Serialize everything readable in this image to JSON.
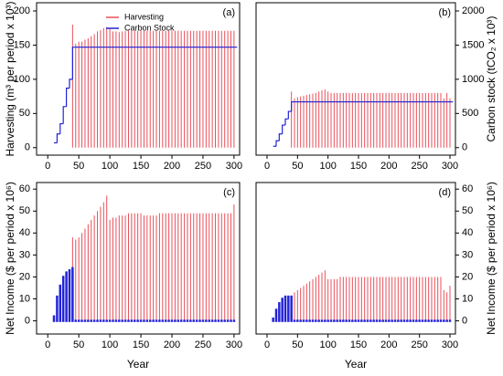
{
  "chart_data": [
    {
      "type": "bar_line",
      "label": "(a)",
      "ylabel": "Harvesting (m³ per period x 10³)",
      "ytick_side": "left",
      "xlim": [
        -18,
        309
      ],
      "xticks": [
        0,
        50,
        100,
        150,
        200,
        250,
        300
      ],
      "ylim": [
        -11,
        212
      ],
      "yticks": [
        0,
        50,
        100,
        150,
        200
      ],
      "y2lim": [
        -110,
        2120
      ],
      "legend": "upper center",
      "x": [
        10,
        15,
        20,
        25,
        30,
        35,
        40,
        45,
        50,
        55,
        60,
        65,
        70,
        75,
        80,
        85,
        90,
        95,
        100,
        105,
        110,
        115,
        120,
        125,
        130,
        135,
        140,
        145,
        150,
        155,
        160,
        165,
        170,
        175,
        180,
        185,
        190,
        195,
        200,
        205,
        210,
        215,
        220,
        225,
        230,
        235,
        240,
        245,
        250,
        255,
        260,
        265,
        270,
        275,
        280,
        285,
        290,
        295,
        300
      ],
      "series": [
        {
          "name": "Harvesting",
          "color": "#e8505b",
          "kind": "bars",
          "values": [
            null,
            null,
            null,
            null,
            null,
            null,
            180,
            152,
            155,
            155,
            158,
            160,
            163,
            166,
            170,
            172,
            175,
            176,
            174,
            170,
            170,
            169,
            170,
            171,
            171,
            171,
            171,
            171,
            171,
            171,
            171,
            171,
            171,
            171,
            171,
            171,
            171,
            171,
            171,
            171,
            171,
            171,
            171,
            171,
            171,
            171,
            171,
            171,
            171,
            171,
            171,
            171,
            171,
            171,
            171,
            171,
            171,
            171,
            171
          ]
        },
        {
          "name": "Carbon Stock",
          "color": "#2323d8",
          "kind": "step",
          "axis": "y2",
          "values": [
            70,
            200,
            350,
            600,
            870,
            1000,
            1470,
            1470,
            1470,
            1470,
            1470,
            1470,
            1470,
            1470,
            1470,
            1470,
            1470,
            1470,
            1470,
            1470,
            1470,
            1470,
            1470,
            1470,
            1470,
            1470,
            1470,
            1470,
            1470,
            1470,
            1470,
            1470,
            1470,
            1470,
            1470,
            1470,
            1470,
            1470,
            1470,
            1470,
            1470,
            1470,
            1470,
            1470,
            1470,
            1470,
            1470,
            1470,
            1470,
            1470,
            1470,
            1470,
            1470,
            1470,
            1470,
            1470,
            1470,
            1470,
            1470
          ]
        }
      ]
    },
    {
      "type": "bar_line",
      "label": "(b)",
      "y2label": "Carbon stock (tCO₂ x 10³)",
      "ytick_side": "left",
      "xlim": [
        -18,
        309
      ],
      "xticks": [
        0,
        50,
        100,
        150,
        200,
        250,
        300
      ],
      "ylim": [
        -11,
        212
      ],
      "y2lim": [
        -110,
        2120
      ],
      "y2ticks": [
        0,
        500,
        1000,
        1500,
        2000
      ],
      "x": [
        10,
        15,
        20,
        25,
        30,
        35,
        40,
        45,
        50,
        55,
        60,
        65,
        70,
        75,
        80,
        85,
        90,
        95,
        100,
        105,
        110,
        115,
        120,
        125,
        130,
        135,
        140,
        145,
        150,
        155,
        160,
        165,
        170,
        175,
        180,
        185,
        190,
        195,
        200,
        205,
        210,
        215,
        220,
        225,
        230,
        235,
        240,
        245,
        250,
        255,
        260,
        265,
        270,
        275,
        280,
        285,
        290,
        295,
        300
      ],
      "series": [
        {
          "color": "#e8505b",
          "kind": "bars",
          "values": [
            null,
            null,
            null,
            null,
            null,
            null,
            82,
            72,
            74,
            75,
            76,
            77,
            78,
            79,
            80,
            82,
            84,
            85,
            82,
            80,
            80,
            80,
            80,
            80,
            80,
            80,
            80,
            80,
            80,
            80,
            80,
            80,
            80,
            80,
            80,
            80,
            80,
            80,
            80,
            80,
            80,
            80,
            80,
            80,
            80,
            80,
            80,
            80,
            80,
            80,
            80,
            80,
            80,
            80,
            80,
            80,
            72,
            80,
            72
          ]
        },
        {
          "color": "#2323d8",
          "kind": "step",
          "axis": "y2",
          "values": [
            20,
            100,
            200,
            330,
            420,
            530,
            670,
            670,
            670,
            670,
            670,
            670,
            670,
            670,
            670,
            670,
            670,
            670,
            670,
            670,
            670,
            670,
            670,
            670,
            670,
            670,
            670,
            670,
            670,
            670,
            670,
            670,
            670,
            670,
            670,
            670,
            670,
            670,
            670,
            670,
            670,
            670,
            670,
            670,
            670,
            670,
            670,
            670,
            670,
            670,
            670,
            670,
            670,
            670,
            670,
            670,
            670,
            670,
            670
          ]
        }
      ]
    },
    {
      "type": "bar",
      "label": "(c)",
      "ylabel": "Net Income ($ per period x 10⁶)",
      "xlabel": "Year",
      "ytick_side": "left",
      "xlim": [
        -18,
        309
      ],
      "xticks": [
        0,
        50,
        100,
        150,
        200,
        250,
        300
      ],
      "ylim": [
        -6,
        63
      ],
      "yticks": [
        0,
        10,
        20,
        30,
        40,
        50,
        60
      ],
      "x": [
        10,
        15,
        20,
        25,
        30,
        35,
        40,
        45,
        50,
        55,
        60,
        65,
        70,
        75,
        80,
        85,
        90,
        95,
        100,
        105,
        110,
        115,
        120,
        125,
        130,
        135,
        140,
        145,
        150,
        155,
        160,
        165,
        170,
        175,
        180,
        185,
        190,
        195,
        200,
        205,
        210,
        215,
        220,
        225,
        230,
        235,
        240,
        245,
        250,
        255,
        260,
        265,
        270,
        275,
        280,
        285,
        290,
        295,
        300
      ],
      "series": [
        {
          "color": "#e8505b",
          "kind": "bars",
          "values": [
            null,
            null,
            null,
            null,
            null,
            null,
            38,
            37,
            38,
            40,
            42,
            44,
            46,
            48,
            50,
            52,
            54,
            57,
            46,
            47,
            47,
            48,
            48,
            48,
            49,
            49,
            49,
            49,
            49,
            48,
            48,
            48,
            48,
            48,
            49,
            49,
            49,
            49,
            49,
            49,
            49,
            49,
            49,
            49,
            49,
            49,
            49,
            49,
            49,
            49,
            49,
            49,
            49,
            49,
            49,
            49,
            49,
            49,
            53
          ]
        },
        {
          "color": "#2323d8",
          "kind": "thick",
          "values": [
            2,
            11,
            16,
            20,
            22,
            23,
            24,
            0,
            0,
            0,
            0,
            0,
            0,
            0,
            0,
            0,
            0,
            0,
            0,
            0,
            0,
            0,
            0,
            0,
            0,
            0,
            0,
            0,
            0,
            0,
            0,
            0,
            0,
            0,
            0,
            0,
            0,
            0,
            0,
            0,
            0,
            0,
            0,
            0,
            0,
            0,
            0,
            0,
            0,
            0,
            0,
            0,
            0,
            0,
            0,
            0,
            0,
            0,
            0
          ]
        }
      ]
    },
    {
      "type": "bar",
      "label": "(d)",
      "ylabel": "Net Income ($ per period x 10⁶)",
      "xlabel": "Year",
      "ytick_side": "right",
      "xlim": [
        -18,
        309
      ],
      "xticks": [
        0,
        50,
        100,
        150,
        200,
        250,
        300
      ],
      "ylim": [
        -6,
        63
      ],
      "yticks": [
        0,
        10,
        20,
        30,
        40,
        50,
        60
      ],
      "x": [
        10,
        15,
        20,
        25,
        30,
        35,
        40,
        45,
        50,
        55,
        60,
        65,
        70,
        75,
        80,
        85,
        90,
        95,
        100,
        105,
        110,
        115,
        120,
        125,
        130,
        135,
        140,
        145,
        150,
        155,
        160,
        165,
        170,
        175,
        180,
        185,
        190,
        195,
        200,
        205,
        210,
        215,
        220,
        225,
        230,
        235,
        240,
        245,
        250,
        255,
        260,
        265,
        270,
        275,
        280,
        285,
        290,
        295,
        300
      ],
      "series": [
        {
          "color": "#e8505b",
          "kind": "bars",
          "values": [
            null,
            null,
            null,
            null,
            null,
            null,
            11,
            13,
            14,
            15,
            16,
            17,
            18,
            19,
            20,
            21,
            22,
            23,
            19,
            19,
            19,
            19,
            20,
            20,
            20,
            20,
            20,
            20,
            20,
            20,
            20,
            20,
            20,
            20,
            20,
            20,
            20,
            20,
            20,
            20,
            20,
            20,
            20,
            20,
            20,
            20,
            20,
            20,
            20,
            20,
            20,
            20,
            20,
            20,
            20,
            20,
            14,
            13,
            16
          ]
        },
        {
          "color": "#2323d8",
          "kind": "thick",
          "values": [
            1,
            5,
            8,
            10,
            11,
            11,
            11,
            0,
            0,
            0,
            0,
            0,
            0,
            0,
            0,
            0,
            0,
            0,
            0,
            0,
            0,
            0,
            0,
            0,
            0,
            0,
            0,
            0,
            0,
            0,
            0,
            0,
            0,
            0,
            0,
            0,
            0,
            0,
            0,
            0,
            0,
            0,
            0,
            0,
            0,
            0,
            0,
            0,
            0,
            0,
            0,
            0,
            0,
            0,
            0,
            0,
            0,
            0,
            0
          ]
        }
      ]
    }
  ]
}
